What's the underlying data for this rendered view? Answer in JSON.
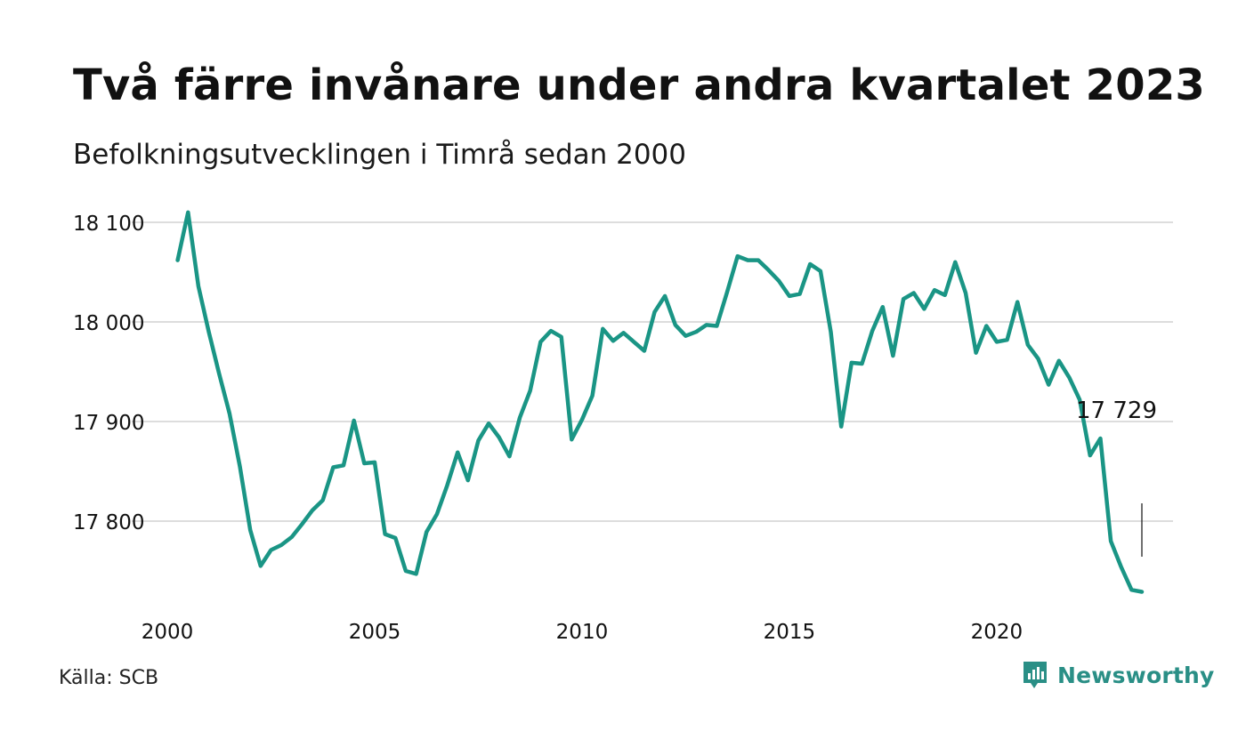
{
  "title": "Två färre invånare under andra kvartalet 2023",
  "subtitle": "Befolkningsutvecklingen i Timrå sedan 2000",
  "source": "Källa: SCB",
  "logo": {
    "text": "Newsworthy",
    "color": "#2a8f86"
  },
  "colors": {
    "line": "#1a9585",
    "grid": "#dddddd",
    "text": "#111111"
  },
  "chart_data": {
    "type": "line",
    "title": "Två färre invånare under andra kvartalet 2023",
    "subtitle": "Befolkningsutvecklingen i Timrå sedan 2000",
    "xlim": [
      2000,
      2023.5
    ],
    "ylim": [
      17720,
      18110
    ],
    "yticks": [
      17800,
      17900,
      18000,
      18100
    ],
    "ytick_labels": [
      "17 800",
      "17 900",
      "18 000",
      "18 100"
    ],
    "xticks": [
      2000,
      2005,
      2010,
      2015,
      2020
    ],
    "xtick_labels": [
      "2000",
      "2005",
      "2010",
      "2015",
      "2020"
    ],
    "grid": "horizontal",
    "last_value_label": "17 729",
    "x": [
      2000.25,
      2000.5,
      2000.75,
      2001.0,
      2001.25,
      2001.5,
      2001.75,
      2002.0,
      2002.25,
      2002.5,
      2002.75,
      2003.0,
      2003.25,
      2003.5,
      2003.75,
      2004.0,
      2004.25,
      2004.5,
      2004.75,
      2005.0,
      2005.25,
      2005.5,
      2005.75,
      2006.0,
      2006.25,
      2006.5,
      2006.75,
      2007.0,
      2007.25,
      2007.5,
      2007.75,
      2008.0,
      2008.25,
      2008.5,
      2008.75,
      2009.0,
      2009.25,
      2009.5,
      2009.75,
      2010.0,
      2010.25,
      2010.5,
      2010.75,
      2011.0,
      2011.25,
      2011.5,
      2011.75,
      2012.0,
      2012.25,
      2012.5,
      2012.75,
      2013.0,
      2013.25,
      2013.5,
      2013.75,
      2014.0,
      2014.25,
      2014.5,
      2014.75,
      2015.0,
      2015.25,
      2015.5,
      2015.75,
      2016.0,
      2016.25,
      2016.5,
      2016.75,
      2017.0,
      2017.25,
      2017.5,
      2017.75,
      2018.0,
      2018.25,
      2018.5,
      2018.75,
      2019.0,
      2019.25,
      2019.5,
      2019.75,
      2020.0,
      2020.25,
      2020.5,
      2020.75,
      2021.0,
      2021.25,
      2021.5,
      2021.75,
      2022.0,
      2022.25,
      2022.5,
      2022.75,
      2023.0,
      2023.25,
      2023.5
    ],
    "series": [
      {
        "values": [
          18062,
          18110,
          18036,
          17990,
          17948,
          17908,
          17855,
          17791,
          17755,
          17771,
          17776,
          17784,
          17797,
          17811,
          17821,
          17854,
          17856,
          17901,
          17858,
          17859,
          17787,
          17783,
          17750,
          17747,
          17789,
          17807,
          17836,
          17869,
          17841,
          17881,
          17898,
          17884,
          17865,
          17904,
          17931,
          17980,
          17991,
          17985,
          17882,
          17902,
          17926,
          17993,
          17981,
          17989,
          17980,
          17971,
          18010,
          18026,
          17997,
          17986,
          17990,
          17997,
          17996,
          18030,
          18066,
          18062,
          18062,
          18052,
          18041,
          18026,
          18028,
          18058,
          18051,
          17990,
          17895,
          17959,
          17958,
          17991,
          18015,
          17966,
          18023,
          18029,
          18013,
          18032,
          18027,
          18060,
          18029,
          17969,
          17996,
          17980,
          17982,
          18020,
          17977,
          17963,
          17937,
          17961,
          17944,
          17922,
          17866,
          17883,
          17780,
          17754,
          17731,
          17729
        ]
      }
    ]
  }
}
